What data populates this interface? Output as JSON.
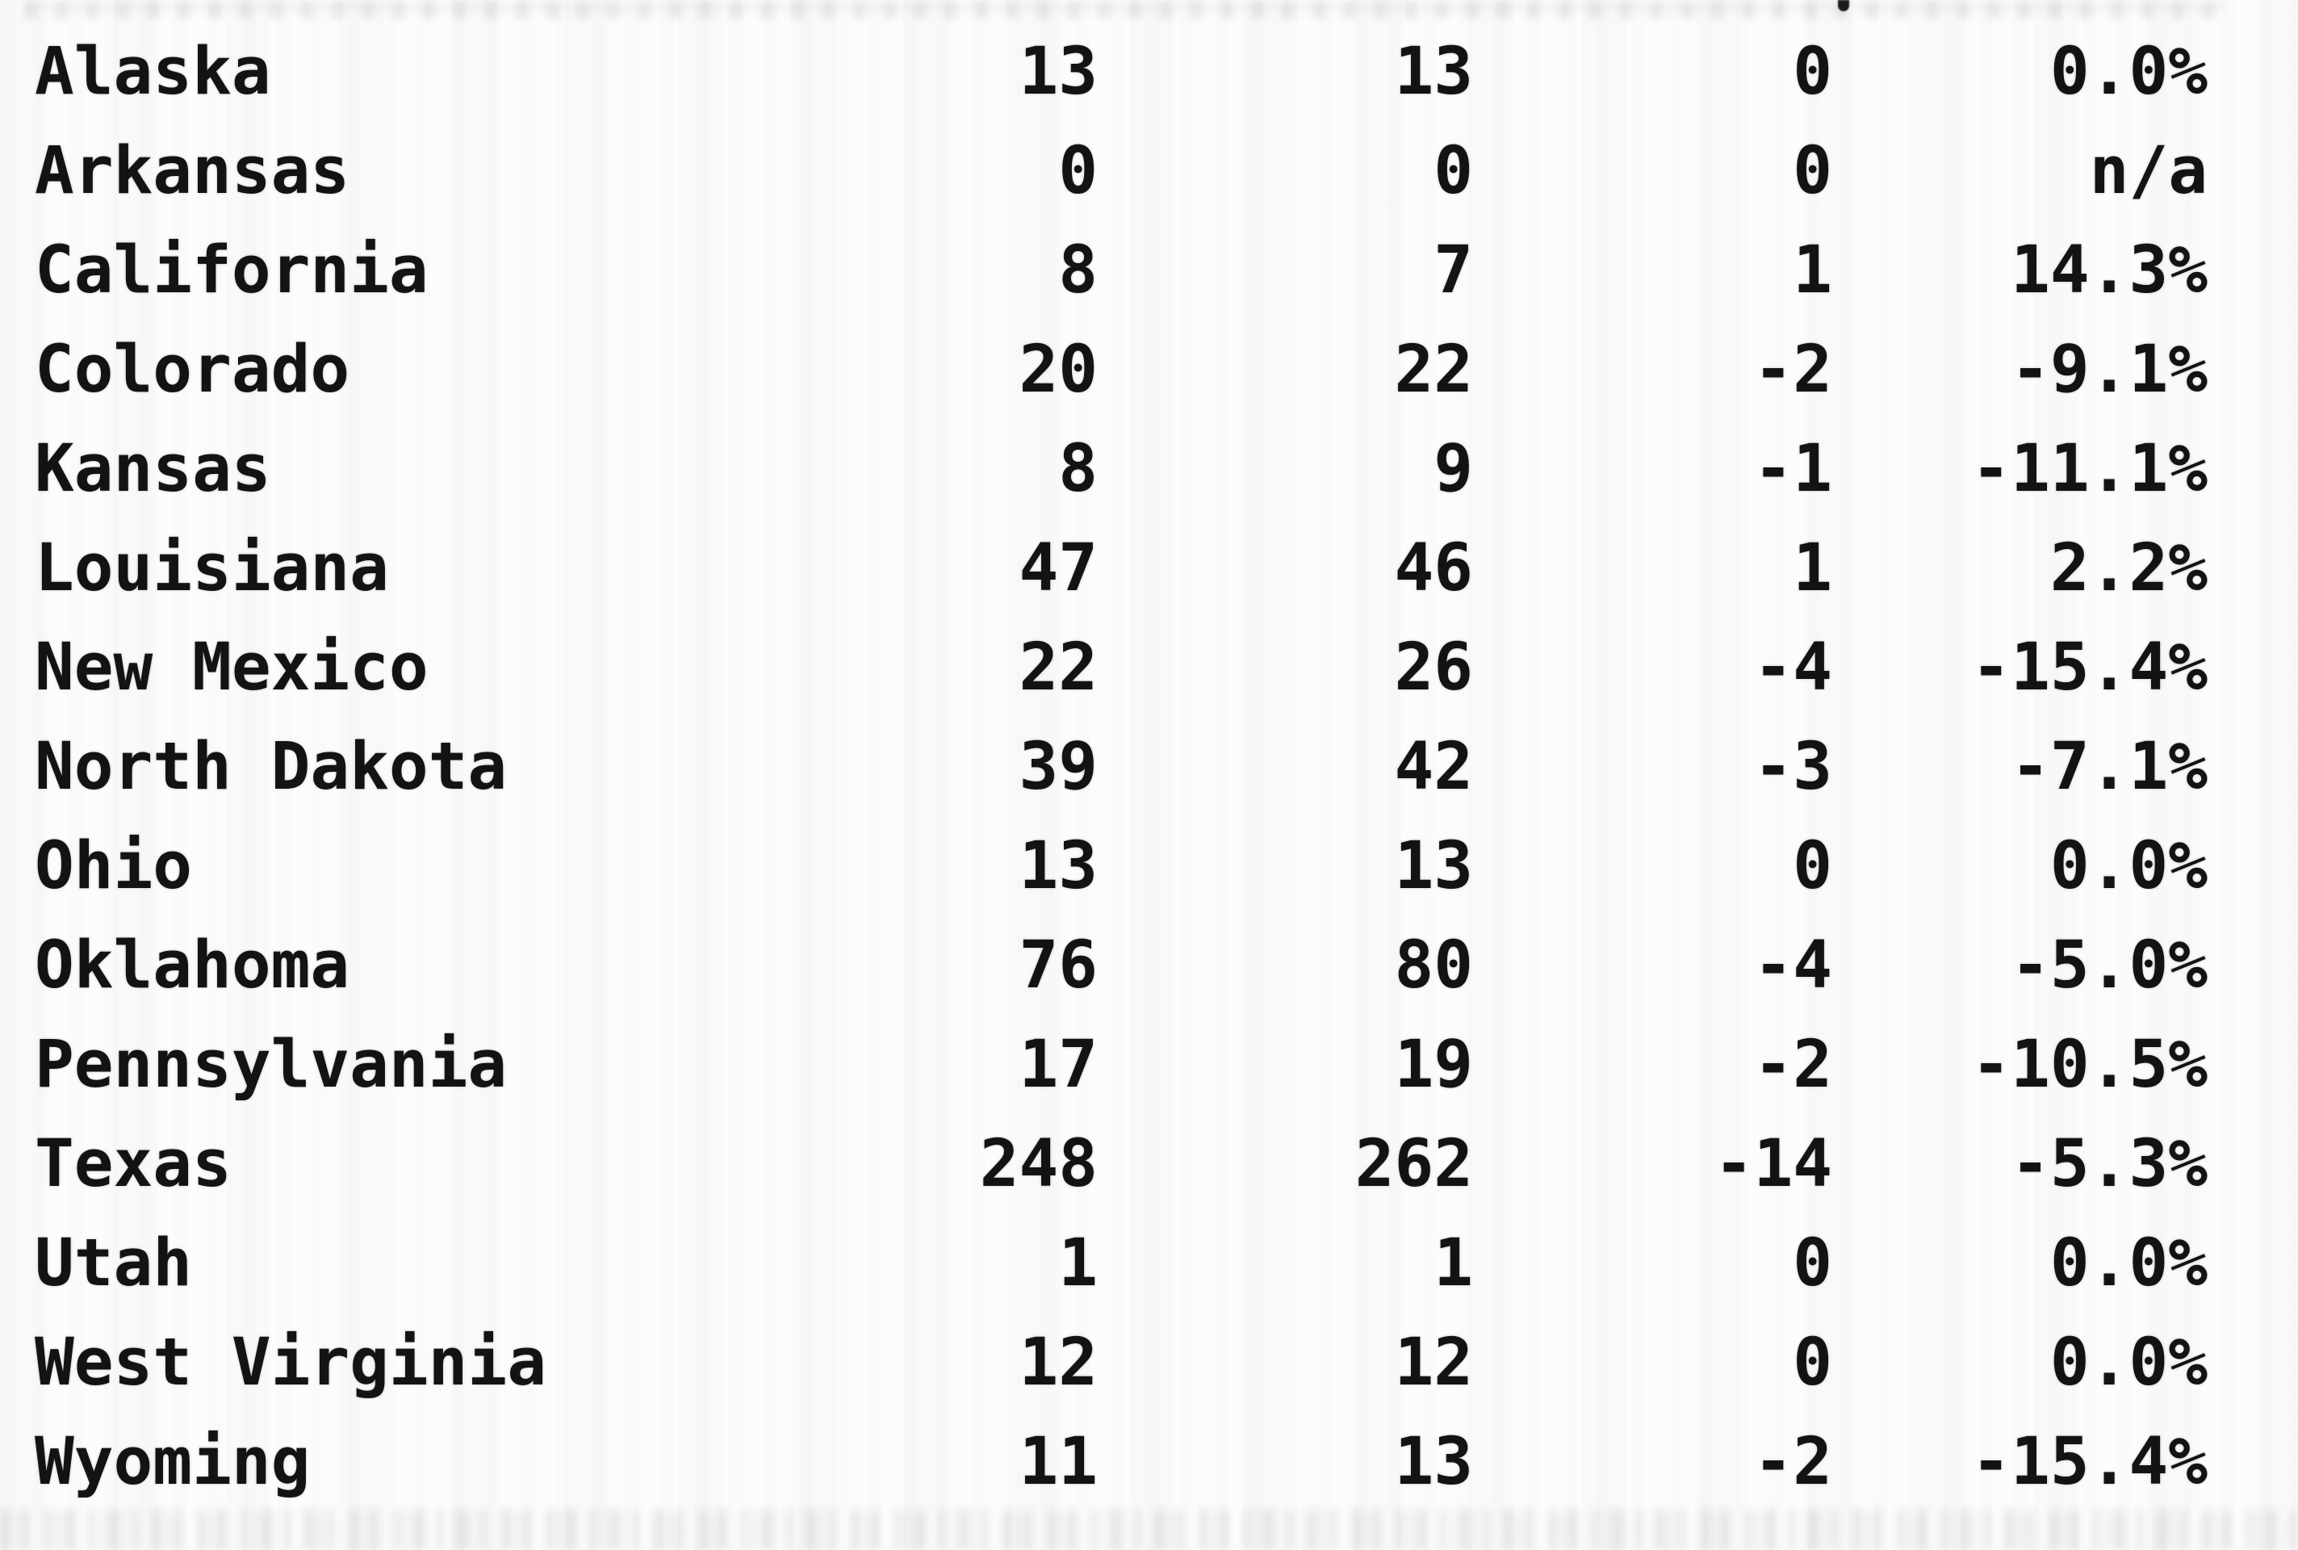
{
  "page": {
    "background_color": "#fcfcfc",
    "text_color": "#131313"
  },
  "table": {
    "rows": [
      {
        "state": "Alaska",
        "current": "13",
        "previous": "13",
        "change": "0",
        "pct_change": "0.0%"
      },
      {
        "state": "Arkansas",
        "current": "0",
        "previous": "0",
        "change": "0",
        "pct_change": "n/a"
      },
      {
        "state": "California",
        "current": "8",
        "previous": "7",
        "change": "1",
        "pct_change": "14.3%"
      },
      {
        "state": "Colorado",
        "current": "20",
        "previous": "22",
        "change": "-2",
        "pct_change": "-9.1%"
      },
      {
        "state": "Kansas",
        "current": "8",
        "previous": "9",
        "change": "-1",
        "pct_change": "-11.1%"
      },
      {
        "state": "Louisiana",
        "current": "47",
        "previous": "46",
        "change": "1",
        "pct_change": "2.2%"
      },
      {
        "state": "New Mexico",
        "current": "22",
        "previous": "26",
        "change": "-4",
        "pct_change": "-15.4%"
      },
      {
        "state": "North Dakota",
        "current": "39",
        "previous": "42",
        "change": "-3",
        "pct_change": "-7.1%"
      },
      {
        "state": "Ohio",
        "current": "13",
        "previous": "13",
        "change": "0",
        "pct_change": "0.0%"
      },
      {
        "state": "Oklahoma",
        "current": "76",
        "previous": "80",
        "change": "-4",
        "pct_change": "-5.0%"
      },
      {
        "state": "Pennsylvania",
        "current": "17",
        "previous": "19",
        "change": "-2",
        "pct_change": "-10.5%"
      },
      {
        "state": "Texas",
        "current": "248",
        "previous": "262",
        "change": "-14",
        "pct_change": "-5.3%"
      },
      {
        "state": "Utah",
        "current": "1",
        "previous": "1",
        "change": "0",
        "pct_change": "0.0%"
      },
      {
        "state": "West Virginia",
        "current": "12",
        "previous": "12",
        "change": "0",
        "pct_change": "0.0%"
      },
      {
        "state": "Wyoming",
        "current": "11",
        "previous": "13",
        "change": "-2",
        "pct_change": "-15.4%"
      }
    ]
  },
  "chart_data": {
    "type": "table",
    "rows": [
      [
        "Alaska",
        "13",
        "13",
        "0",
        "0.0%"
      ],
      [
        "Arkansas",
        "0",
        "0",
        "0",
        "n/a"
      ],
      [
        "California",
        "8",
        "7",
        "1",
        "14.3%"
      ],
      [
        "Colorado",
        "20",
        "22",
        "-2",
        "-9.1%"
      ],
      [
        "Kansas",
        "8",
        "9",
        "-1",
        "-11.1%"
      ],
      [
        "Louisiana",
        "47",
        "46",
        "1",
        "2.2%"
      ],
      [
        "New Mexico",
        "22",
        "26",
        "-4",
        "-15.4%"
      ],
      [
        "North Dakota",
        "39",
        "42",
        "-3",
        "-7.1%"
      ],
      [
        "Ohio",
        "13",
        "13",
        "0",
        "0.0%"
      ],
      [
        "Oklahoma",
        "76",
        "80",
        "-4",
        "-5.0%"
      ],
      [
        "Pennsylvania",
        "17",
        "19",
        "-2",
        "-10.5%"
      ],
      [
        "Texas",
        "248",
        "262",
        "-14",
        "-5.3%"
      ],
      [
        "Utah",
        "1",
        "1",
        "0",
        "0.0%"
      ],
      [
        "West Virginia",
        "12",
        "12",
        "0",
        "0.0%"
      ],
      [
        "Wyoming",
        "11",
        "13",
        "-2",
        "-15.4%"
      ]
    ]
  }
}
